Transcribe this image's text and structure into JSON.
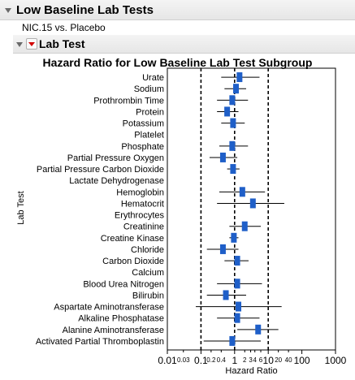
{
  "report": {
    "title": "Low Baseline Lab Tests",
    "subtitle": "NIC.15 vs. Placebo",
    "section_title": "Lab Test"
  },
  "colors": {
    "marker": "#1f5fc8",
    "ci_line": "#000000",
    "ref_line": "#000000"
  },
  "chart_data": {
    "type": "forest",
    "title": "Hazard Ratio for Low Baseline Lab Test Subgroup",
    "xlabel": "Hazard Ratio",
    "ylabel": "Lab Test",
    "x_scale": "log",
    "xlim": [
      0.01,
      1000
    ],
    "x_ticks_major": [
      "0.01",
      "0.1",
      "1",
      "10",
      "100",
      "1000"
    ],
    "x_ticks_minor": [
      "0.03",
      "0.2",
      "0.4",
      "2",
      "3",
      "4",
      "6",
      "20",
      "40"
    ],
    "reference_lines": [
      0.1,
      1,
      10
    ],
    "rows": [
      {
        "label": "Urate",
        "hr": 1.4,
        "lo": 0.4,
        "hi": 5.5
      },
      {
        "label": "Sodium",
        "hr": 1.1,
        "lo": 0.5,
        "hi": 2.2
      },
      {
        "label": "Prothrombin Time",
        "hr": 0.85,
        "lo": 0.3,
        "hi": 2.5
      },
      {
        "label": "Protein",
        "hr": 0.6,
        "lo": 0.3,
        "hi": 1.3
      },
      {
        "label": "Potassium",
        "hr": 0.9,
        "lo": 0.4,
        "hi": 2.0
      },
      {
        "label": "Platelet",
        "hr": null,
        "lo": null,
        "hi": null
      },
      {
        "label": "Phosphate",
        "hr": 0.85,
        "lo": 0.35,
        "hi": 2.5
      },
      {
        "label": "Partial Pressure Oxygen",
        "hr": 0.45,
        "lo": 0.18,
        "hi": 1.2
      },
      {
        "label": "Partial Pressure Carbon Dioxide",
        "hr": 0.9,
        "lo": 0.6,
        "hi": 1.4
      },
      {
        "label": "Lactate Dehydrogenase",
        "hr": null,
        "lo": null,
        "hi": null
      },
      {
        "label": "Hemoglobin",
        "hr": 1.7,
        "lo": 0.35,
        "hi": 8.0
      },
      {
        "label": "Hematocrit",
        "hr": 3.5,
        "lo": 0.3,
        "hi": 30
      },
      {
        "label": "Erythrocytes",
        "hr": null,
        "lo": null,
        "hi": null
      },
      {
        "label": "Creatinine",
        "hr": 2.0,
        "lo": 0.7,
        "hi": 6.0
      },
      {
        "label": "Creatine Kinase",
        "hr": 0.95,
        "lo": 0.7,
        "hi": 1.3
      },
      {
        "label": "Chloride",
        "hr": 0.45,
        "lo": 0.15,
        "hi": 1.3
      },
      {
        "label": "Carbon Dioxide",
        "hr": 1.2,
        "lo": 0.5,
        "hi": 2.6
      },
      {
        "label": "Calcium",
        "hr": null,
        "lo": null,
        "hi": null
      },
      {
        "label": "Blood Urea Nitrogen",
        "hr": 1.2,
        "lo": 0.3,
        "hi": 6.5
      },
      {
        "label": "Bilirubin",
        "hr": 0.55,
        "lo": 0.15,
        "hi": 2.2
      },
      {
        "label": "Aspartate Aminotransferase",
        "hr": 1.3,
        "lo": 0.07,
        "hi": 25
      },
      {
        "label": "Alkaline Phosphatase",
        "hr": 1.2,
        "lo": 0.3,
        "hi": 5.5
      },
      {
        "label": "Alanine Aminotransferase",
        "hr": 5.0,
        "lo": 1.2,
        "hi": 20
      },
      {
        "label": "Activated Partial Thromboplastin",
        "hr": 0.85,
        "lo": 0.12,
        "hi": 6.0
      }
    ]
  }
}
